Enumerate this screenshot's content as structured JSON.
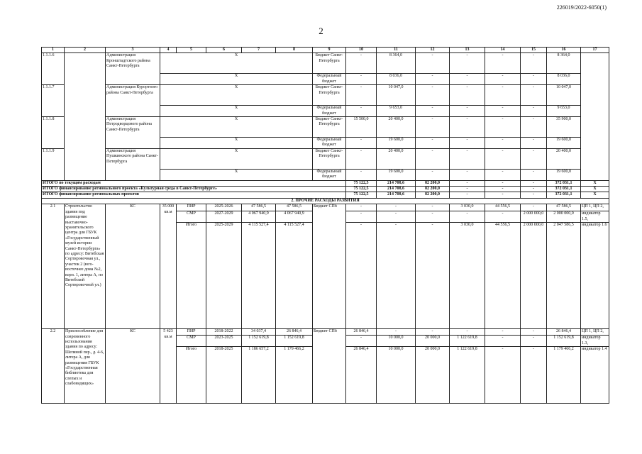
{
  "header_code": "226019/2022-6050(1)",
  "page_number": "2",
  "column_numbers": [
    "1",
    "2",
    "3",
    "4",
    "5",
    "6",
    "7",
    "8",
    "9",
    "10",
    "11",
    "12",
    "13",
    "14",
    "15",
    "16",
    "17"
  ],
  "section1": {
    "items": [
      {
        "num": "1.1.1.6",
        "executor": "Администрация Кронштадтского района Санкт-Петербурга",
        "lines": [
          {
            "x": "X",
            "source": "Бюджет Санкт-Петербурга",
            "values": [
              "-",
              "8 364,0",
              "-",
              "-",
              "-",
              "-",
              "8 364,0"
            ]
          },
          {
            "x": "X",
            "source": "Федеральный бюджет",
            "values": [
              "-",
              "8 036,0",
              "-",
              "-",
              "-",
              "-",
              "8 036,0"
            ]
          }
        ]
      },
      {
        "num": "1.1.1.7",
        "executor": "Администрация Курортного района Санкт-Петербурга",
        "lines": [
          {
            "x": "X",
            "source": "Бюджет Санкт-Петербурга",
            "values": [
              "-",
              "10 047,0",
              "-",
              "-",
              "-",
              "-",
              "10 047,0"
            ]
          },
          {
            "x": "X",
            "source": "Федеральный бюджет",
            "values": [
              "-",
              "9 653,0",
              "-",
              "-",
              "-",
              "-",
              "9 653,0"
            ]
          }
        ]
      },
      {
        "num": "1.1.1.8",
        "executor": "Администрация Петродворцового района Санкт-Петербурга",
        "lines": [
          {
            "x": "X",
            "source": "Бюджет Санкт-Петербурга",
            "values": [
              "15 500,0",
              "20 400,0",
              "-",
              "-",
              "-",
              "-",
              "35 900,0"
            ]
          },
          {
            "x": "X",
            "source": "Федеральный бюджет",
            "values": [
              "-",
              "19 600,0",
              "-",
              "-",
              "-",
              "-",
              "19 600,0"
            ]
          }
        ]
      },
      {
        "num": "1.1.1.9",
        "executor": "Администрация Пушкинского района Санкт-Петербурга",
        "lines": [
          {
            "x": "X",
            "source": "Бюджет Санкт-Петербурга",
            "values": [
              "-",
              "20 400,0",
              "-",
              "-",
              "-",
              "-",
              "20 400,0"
            ]
          },
          {
            "x": "X",
            "source": "Федеральный бюджет",
            "values": [
              "-",
              "19 600,0",
              "-",
              "-",
              "-",
              "-",
              "19 600,0"
            ]
          }
        ]
      }
    ]
  },
  "totals": [
    {
      "label": "ИТОГО по текущим расходам",
      "values": [
        "75 122,5",
        "214 708,6",
        "82 200,0",
        "-",
        "-",
        "-",
        "372 031,1"
      ],
      "col17": "X"
    },
    {
      "label": "ИТОГО финансирование регионального проекта «Культурная среда в Санкт-Петербурге»",
      "values": [
        "75 122,5",
        "214 708,6",
        "82 200,0",
        "-",
        "-",
        "-",
        "372 031,1"
      ],
      "col17": "X"
    },
    {
      "label": "ИТОГО финансирование региональных проектов",
      "values": [
        "75 122,5",
        "214 708,6",
        "82 200,0",
        "-",
        "-",
        "-",
        "372 031,1"
      ],
      "col17": "X"
    }
  ],
  "section2": {
    "title": "2. ПРОЧИЕ РАСХОДЫ РАЗВИТИЯ",
    "items": [
      {
        "num": "2.1",
        "name": "Строительство здания под размещение выставочно-хранительского центра для ГБУК «Государственный музей истории Санкт-Петербурга» по адресу: Витебская Сортировочная ул., участок 2 (юго-восточнее дома №2, корп. 1, литера А, по Витебской Сортировочной ул.)",
        "type": "КС",
        "capacity": "35 000 кв.м",
        "source": "Бюджет СПб",
        "lines": [
          {
            "stage": "ПИР",
            "period": "2025-2026",
            "cost": "47 586,5",
            "limit": "47 586,5",
            "values": [
              "-",
              "-",
              "-",
              "3 030,0",
              "44 556,5",
              "-",
              "47 586,5"
            ],
            "col17": "ЦП 1, ЦП 2,"
          },
          {
            "stage": "СМР",
            "period": "2027-2029",
            "cost": "4 067 940,9",
            "limit": "4 067 940,9",
            "values": [
              "-",
              "-",
              "-",
              "-",
              "-",
              "2 000 000,0",
              "2 000 000,0"
            ],
            "col17": "индикатор 1.5,"
          },
          {
            "stage": "Итого",
            "period": "2025-2029",
            "cost": "4 115 527,4",
            "limit": "4 115 527,4",
            "values": [
              "-",
              "-",
              "-",
              "3 030,0",
              "44 556,5",
              "2 000 000,0",
              "2 047 586,5"
            ],
            "col17": "индикатор 1.6"
          }
        ]
      },
      {
        "num": "2.2",
        "name": "Приспособление для современного использования здания по адресу: Шепяной пер., д. 4-6, литера А, для размещения ГБУК «Государственная библиотека для слепых и слабовидящих»",
        "type": "КС",
        "capacity": "5 423 кв.м",
        "source": "Бюджет СПб",
        "lines": [
          {
            "stage": "ПИР",
            "period": "2018-2022",
            "cost": "34 037,4",
            "limit": "26 846,4",
            "values": [
              "26 846,4",
              "-",
              "-",
              "-",
              "-",
              "-",
              "26 846,4"
            ],
            "col17": "ЦП 1, ЦП 2,"
          },
          {
            "stage": "СМР",
            "period": "2023-2025",
            "cost": "1 152 619,8",
            "limit": "1 152 619,8",
            "values": [
              "-",
              "10 000,0",
              "20 000,0",
              "1 122 619,8",
              "-",
              "-",
              "1 152 619,8"
            ],
            "col17": "индикатор 1.3,"
          },
          {
            "stage": "Итого",
            "period": "2018-2025",
            "cost": "1 186 657,2",
            "limit": "1 179 466,2",
            "values": [
              "26 846,4",
              "10 000,0",
              "20 000,0",
              "1 122 619,8",
              "-",
              "-",
              "1 179 466,2"
            ],
            "col17": "индикатор 1.4"
          }
        ]
      }
    ]
  }
}
